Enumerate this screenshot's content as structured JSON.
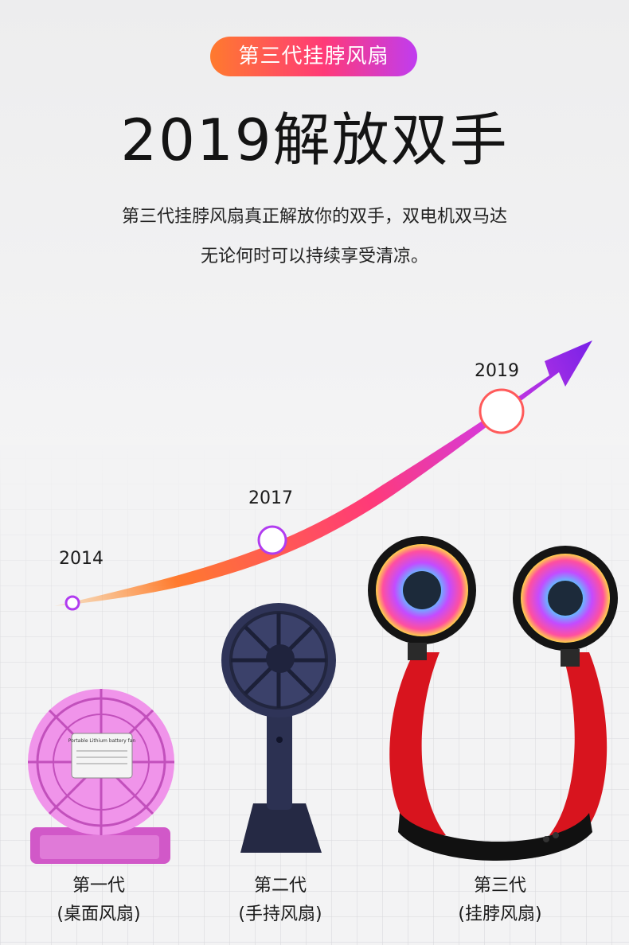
{
  "badge": "第三代挂脖风扇",
  "headline": "2019解放双手",
  "subtitle_line1": "第三代挂脖风扇真正解放你的双手，双电机双马达",
  "subtitle_line2": "无论何时可以持续享受清凉。",
  "timeline": [
    {
      "year": "2014"
    },
    {
      "year": "2017"
    },
    {
      "year": "2019"
    }
  ],
  "products": [
    {
      "generation": "第一代",
      "type": "(桌面风扇)",
      "color": "#e06ad8"
    },
    {
      "generation": "第二代",
      "type": "(手持风扇)",
      "color": "#2a2e4e"
    },
    {
      "generation": "第三代",
      "type": "(挂脖风扇)",
      "color": "#d8141e"
    }
  ],
  "colors": {
    "accent_orange": "#ff7a2e",
    "accent_pink": "#ff3a78",
    "accent_purple": "#8a2be2"
  },
  "desk_fan_label": "Portable Lithium battery fan"
}
